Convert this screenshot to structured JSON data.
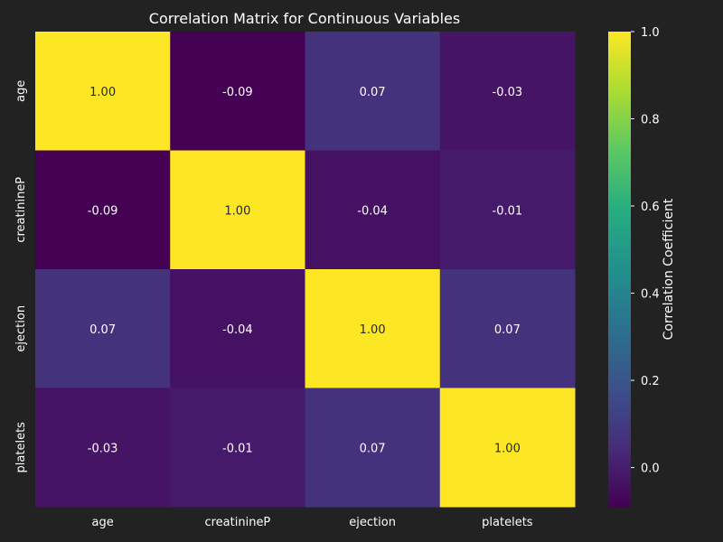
{
  "chart_data": {
    "type": "heatmap",
    "title": "Correlation Matrix for Continuous Variables",
    "x_categories": [
      "age",
      "creatinineP",
      "ejection",
      "platelets"
    ],
    "y_categories": [
      "age",
      "creatinineP",
      "ejection",
      "platelets"
    ],
    "values": [
      [
        1.0,
        -0.09,
        0.07,
        -0.03
      ],
      [
        -0.09,
        1.0,
        -0.04,
        -0.01
      ],
      [
        0.07,
        -0.04,
        1.0,
        0.07
      ],
      [
        -0.03,
        -0.01,
        0.07,
        1.0
      ]
    ],
    "value_format": "2 decimals",
    "colormap": "viridis",
    "colorbar": {
      "label": "Correlation Coefficient",
      "range": [
        -0.09,
        1.0
      ],
      "ticks": [
        0.0,
        0.2,
        0.4,
        0.6,
        0.8,
        1.0
      ],
      "tick_labels": [
        "0.0",
        "0.2",
        "0.4",
        "0.6",
        "0.8",
        "1.0"
      ]
    },
    "background_color": "#222222",
    "text_color": "#ffffff"
  }
}
